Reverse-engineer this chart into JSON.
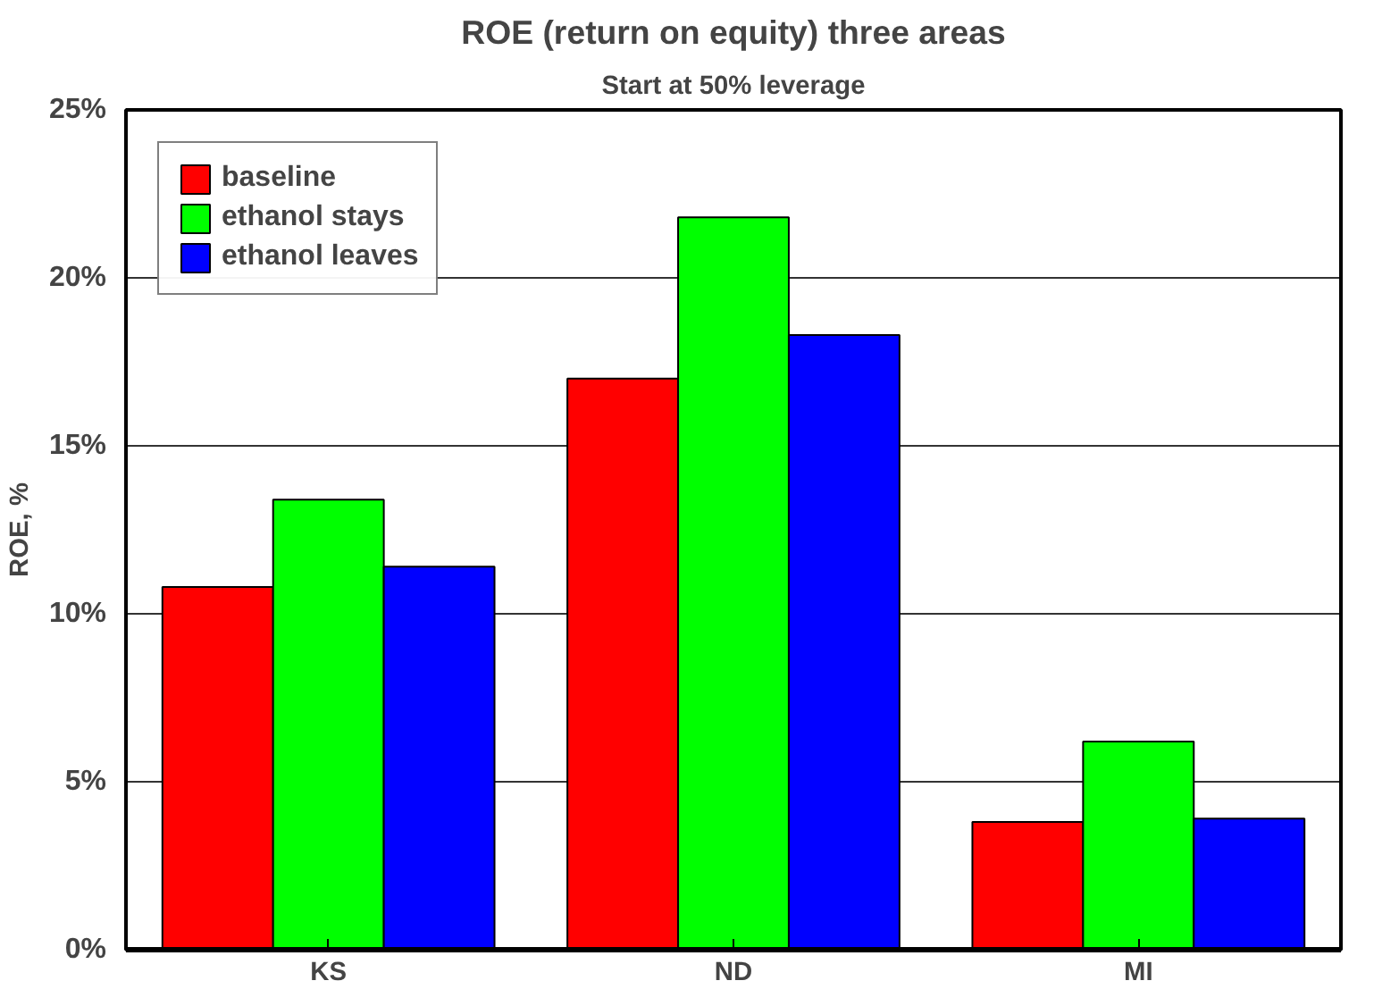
{
  "chart_data": {
    "type": "bar",
    "title": "ROE (return on equity) three areas",
    "subtitle": "Start at 50% leverage",
    "ylabel": "ROE, %",
    "categories": [
      "KS",
      "ND",
      "MI"
    ],
    "series": [
      {
        "name": "baseline",
        "color": "#ff0000",
        "values": [
          10.8,
          17.0,
          3.8
        ]
      },
      {
        "name": "ethanol stays",
        "color": "#00ff00",
        "values": [
          13.4,
          21.8,
          6.2
        ]
      },
      {
        "name": "ethanol leaves",
        "color": "#0000ff",
        "values": [
          11.4,
          18.3,
          3.9
        ]
      }
    ],
    "ylim": [
      0,
      25
    ],
    "yticks": [
      {
        "value": 0,
        "label": "0%"
      },
      {
        "value": 5,
        "label": "5%"
      },
      {
        "value": 10,
        "label": "10%"
      },
      {
        "value": 15,
        "label": "15%"
      },
      {
        "value": 20,
        "label": "20%"
      },
      {
        "value": 25,
        "label": "25%"
      }
    ],
    "grid": "y",
    "legend": "top left"
  }
}
